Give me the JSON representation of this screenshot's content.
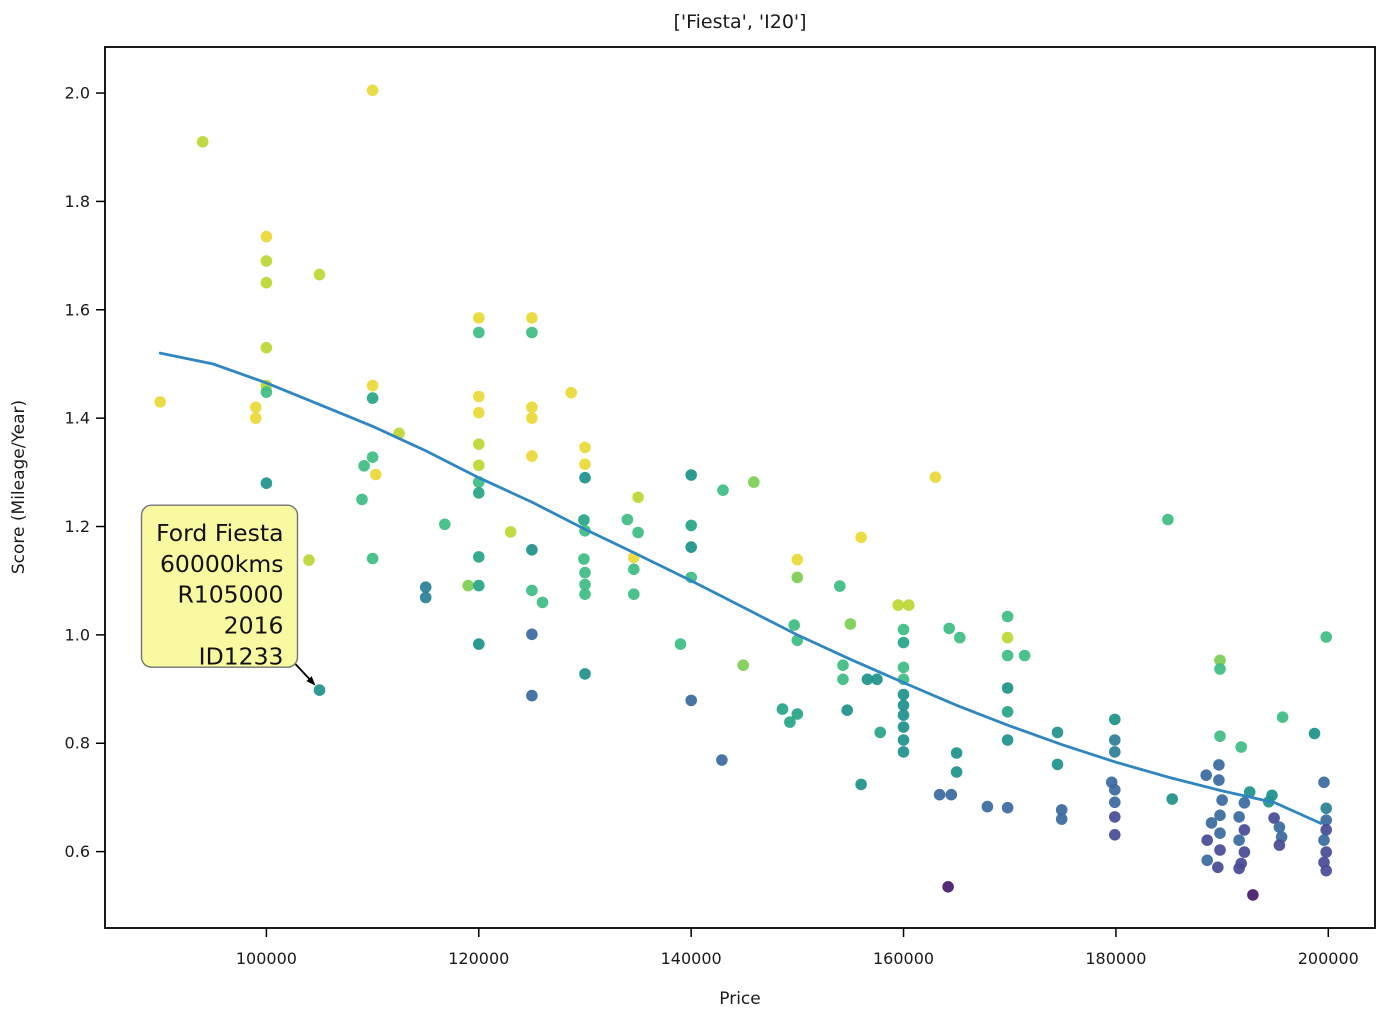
{
  "chart_data": {
    "type": "scatter",
    "title": "['Fiesta', 'I20']",
    "xlabel": "Price",
    "ylabel": "Score (Mileage/Year)",
    "xlim": [
      84800,
      204400
    ],
    "ylim": [
      0.459,
      2.085
    ],
    "x_ticks": [
      100000,
      120000,
      140000,
      160000,
      180000,
      200000
    ],
    "y_ticks": [
      0.6,
      0.8,
      1.0,
      1.2,
      1.4,
      1.6,
      1.8,
      2.0
    ],
    "grid": false,
    "legend": null,
    "colormap": "viridis",
    "palette": {
      "Y": "#e9d938",
      "YG": "#bdd733",
      "LG": "#7ccf52",
      "G": "#3dbc83",
      "TG": "#27a586",
      "T": "#1f928c",
      "TB": "#2b7f97",
      "B": "#3a6b9f",
      "DB": "#474c96",
      "P": "#481a6c"
    },
    "points": [
      [
        110000,
        2.005,
        "Y"
      ],
      [
        94000,
        1.91,
        "YG"
      ],
      [
        100000,
        1.735,
        "Y"
      ],
      [
        100000,
        1.69,
        "YG"
      ],
      [
        100000,
        1.65,
        "YG"
      ],
      [
        105000,
        1.665,
        "YG"
      ],
      [
        100000,
        1.53,
        "YG"
      ],
      [
        90000,
        1.43,
        "Y"
      ],
      [
        100000,
        1.46,
        "YG"
      ],
      [
        100000,
        1.448,
        "G"
      ],
      [
        99000,
        1.42,
        "Y"
      ],
      [
        99000,
        1.4,
        "Y"
      ],
      [
        110000,
        1.46,
        "Y"
      ],
      [
        110000,
        1.437,
        "TG"
      ],
      [
        112500,
        1.372,
        "YG"
      ],
      [
        120000,
        1.585,
        "Y"
      ],
      [
        120000,
        1.558,
        "G"
      ],
      [
        125000,
        1.585,
        "Y"
      ],
      [
        125000,
        1.558,
        "G"
      ],
      [
        120000,
        1.44,
        "Y"
      ],
      [
        120000,
        1.41,
        "Y"
      ],
      [
        125000,
        1.42,
        "Y"
      ],
      [
        125000,
        1.4,
        "Y"
      ],
      [
        128700,
        1.447,
        "Y"
      ],
      [
        120000,
        1.352,
        "YG"
      ],
      [
        120000,
        1.313,
        "YG"
      ],
      [
        125000,
        1.33,
        "Y"
      ],
      [
        130000,
        1.346,
        "Y"
      ],
      [
        130000,
        1.315,
        "Y"
      ],
      [
        130000,
        1.29,
        "T"
      ],
      [
        110000,
        1.328,
        "G"
      ],
      [
        109200,
        1.312,
        "G"
      ],
      [
        110300,
        1.296,
        "Y"
      ],
      [
        120000,
        1.282,
        "G"
      ],
      [
        120000,
        1.262,
        "TG"
      ],
      [
        100000,
        1.28,
        "T"
      ],
      [
        109000,
        1.25,
        "G"
      ],
      [
        135000,
        1.254,
        "YG"
      ],
      [
        140000,
        1.295,
        "T"
      ],
      [
        143000,
        1.267,
        "G"
      ],
      [
        145900,
        1.282,
        "LG"
      ],
      [
        163000,
        1.291,
        "Y"
      ],
      [
        116800,
        1.204,
        "G"
      ],
      [
        123000,
        1.19,
        "YG"
      ],
      [
        129900,
        1.212,
        "TG"
      ],
      [
        130000,
        1.192,
        "G"
      ],
      [
        134000,
        1.213,
        "G"
      ],
      [
        135000,
        1.189,
        "G"
      ],
      [
        129900,
        1.14,
        "G"
      ],
      [
        130000,
        1.115,
        "G"
      ],
      [
        130000,
        1.093,
        "G"
      ],
      [
        130000,
        1.075,
        "G"
      ],
      [
        134600,
        1.143,
        "Y"
      ],
      [
        134600,
        1.121,
        "G"
      ],
      [
        134600,
        1.075,
        "G"
      ],
      [
        104000,
        1.138,
        "YG"
      ],
      [
        100000,
        1.128,
        "Y"
      ],
      [
        110000,
        1.141,
        "G"
      ],
      [
        120000,
        1.144,
        "TG"
      ],
      [
        115000,
        1.088,
        "TB"
      ],
      [
        115000,
        1.069,
        "TB"
      ],
      [
        119000,
        1.091,
        "LG"
      ],
      [
        120000,
        1.091,
        "TG"
      ],
      [
        125000,
        1.157,
        "T"
      ],
      [
        125000,
        1.082,
        "G"
      ],
      [
        126000,
        1.06,
        "G"
      ],
      [
        125000,
        1.001,
        "B"
      ],
      [
        125000,
        0.888,
        "B"
      ],
      [
        130000,
        0.928,
        "T"
      ],
      [
        105000,
        0.898,
        "T"
      ],
      [
        140000,
        1.202,
        "TG"
      ],
      [
        140000,
        1.162,
        "T"
      ],
      [
        140000,
        1.106,
        "G"
      ],
      [
        139000,
        0.983,
        "G"
      ],
      [
        120000,
        0.983,
        "T"
      ],
      [
        144900,
        0.944,
        "LG"
      ],
      [
        140000,
        0.879,
        "B"
      ],
      [
        142900,
        0.769,
        "B"
      ],
      [
        150000,
        1.139,
        "Y"
      ],
      [
        150000,
        1.106,
        "LG"
      ],
      [
        149700,
        1.018,
        "G"
      ],
      [
        150000,
        0.99,
        "G"
      ],
      [
        148600,
        0.863,
        "TG"
      ],
      [
        150000,
        0.854,
        "TG"
      ],
      [
        149300,
        0.839,
        "TG"
      ],
      [
        156000,
        1.18,
        "Y"
      ],
      [
        154000,
        1.09,
        "G"
      ],
      [
        159500,
        1.055,
        "YG"
      ],
      [
        160500,
        1.055,
        "YG"
      ],
      [
        155000,
        1.02,
        "LG"
      ],
      [
        154300,
        0.944,
        "G"
      ],
      [
        154300,
        0.918,
        "G"
      ],
      [
        156600,
        0.918,
        "T"
      ],
      [
        157500,
        0.918,
        "T"
      ],
      [
        160000,
        1.01,
        "G"
      ],
      [
        160000,
        0.986,
        "TG"
      ],
      [
        160000,
        0.94,
        "G"
      ],
      [
        160000,
        0.918,
        "G"
      ],
      [
        160000,
        0.89,
        "T"
      ],
      [
        160000,
        0.87,
        "T"
      ],
      [
        160000,
        0.852,
        "T"
      ],
      [
        160000,
        0.83,
        "T"
      ],
      [
        160000,
        0.806,
        "T"
      ],
      [
        160000,
        0.784,
        "T"
      ],
      [
        154700,
        0.861,
        "T"
      ],
      [
        157800,
        0.82,
        "TG"
      ],
      [
        156000,
        0.724,
        "T"
      ],
      [
        164200,
        0.535,
        "P"
      ],
      [
        184900,
        1.213,
        "G"
      ],
      [
        164300,
        1.012,
        "G"
      ],
      [
        165300,
        0.995,
        "G"
      ],
      [
        169800,
        1.034,
        "G"
      ],
      [
        169800,
        0.995,
        "YG"
      ],
      [
        169800,
        0.962,
        "G"
      ],
      [
        171400,
        0.962,
        "G"
      ],
      [
        169800,
        0.902,
        "T"
      ],
      [
        169800,
        0.858,
        "TG"
      ],
      [
        169800,
        0.806,
        "T"
      ],
      [
        165000,
        0.782,
        "T"
      ],
      [
        165000,
        0.747,
        "T"
      ],
      [
        163400,
        0.705,
        "B"
      ],
      [
        164500,
        0.705,
        "B"
      ],
      [
        167900,
        0.683,
        "B"
      ],
      [
        169800,
        0.681,
        "B"
      ],
      [
        174500,
        0.82,
        "T"
      ],
      [
        174500,
        0.761,
        "T"
      ],
      [
        174900,
        0.677,
        "B"
      ],
      [
        174900,
        0.66,
        "B"
      ],
      [
        179900,
        0.844,
        "T"
      ],
      [
        179900,
        0.806,
        "TB"
      ],
      [
        179900,
        0.784,
        "TB"
      ],
      [
        179600,
        0.728,
        "B"
      ],
      [
        179900,
        0.714,
        "B"
      ],
      [
        179900,
        0.691,
        "B"
      ],
      [
        179900,
        0.664,
        "DB"
      ],
      [
        179900,
        0.631,
        "DB"
      ],
      [
        185300,
        0.697,
        "T"
      ],
      [
        189800,
        0.953,
        "LG"
      ],
      [
        189800,
        0.937,
        "G"
      ],
      [
        195700,
        0.848,
        "G"
      ],
      [
        199800,
        0.996,
        "G"
      ],
      [
        198700,
        0.818,
        "T"
      ],
      [
        189800,
        0.813,
        "G"
      ],
      [
        191800,
        0.793,
        "G"
      ],
      [
        189700,
        0.76,
        "B"
      ],
      [
        188500,
        0.741,
        "B"
      ],
      [
        189700,
        0.732,
        "B"
      ],
      [
        190000,
        0.695,
        "B"
      ],
      [
        189800,
        0.667,
        "B"
      ],
      [
        189000,
        0.653,
        "B"
      ],
      [
        189800,
        0.634,
        "B"
      ],
      [
        188600,
        0.621,
        "DB"
      ],
      [
        189800,
        0.603,
        "DB"
      ],
      [
        188600,
        0.584,
        "B"
      ],
      [
        189600,
        0.571,
        "DB"
      ],
      [
        192600,
        0.71,
        "T"
      ],
      [
        192100,
        0.69,
        "B"
      ],
      [
        191600,
        0.664,
        "B"
      ],
      [
        192100,
        0.64,
        "DB"
      ],
      [
        191600,
        0.621,
        "B"
      ],
      [
        192100,
        0.599,
        "DB"
      ],
      [
        191800,
        0.578,
        "DB"
      ],
      [
        191600,
        0.569,
        "DB"
      ],
      [
        192900,
        0.52,
        "P"
      ],
      [
        194700,
        0.704,
        "T"
      ],
      [
        194400,
        0.692,
        "T"
      ],
      [
        194900,
        0.662,
        "DB"
      ],
      [
        195400,
        0.645,
        "B"
      ],
      [
        195600,
        0.627,
        "B"
      ],
      [
        195400,
        0.612,
        "DB"
      ],
      [
        199600,
        0.728,
        "B"
      ],
      [
        199800,
        0.68,
        "TB"
      ],
      [
        199800,
        0.658,
        "B"
      ],
      [
        199800,
        0.64,
        "DB"
      ],
      [
        199600,
        0.621,
        "B"
      ],
      [
        199800,
        0.599,
        "DB"
      ],
      [
        199600,
        0.58,
        "DB"
      ],
      [
        199800,
        0.565,
        "DB"
      ]
    ],
    "trend_line": {
      "color": "#2f86c1",
      "points": [
        [
          90000,
          1.52
        ],
        [
          95000,
          1.5
        ],
        [
          100000,
          1.465
        ],
        [
          105000,
          1.425
        ],
        [
          110000,
          1.385
        ],
        [
          115000,
          1.34
        ],
        [
          120000,
          1.29
        ],
        [
          125000,
          1.245
        ],
        [
          130000,
          1.195
        ],
        [
          135000,
          1.148
        ],
        [
          140000,
          1.1
        ],
        [
          145000,
          1.05
        ],
        [
          150000,
          1.0
        ],
        [
          155000,
          0.955
        ],
        [
          160000,
          0.912
        ],
        [
          165000,
          0.87
        ],
        [
          170000,
          0.832
        ],
        [
          175000,
          0.797
        ],
        [
          180000,
          0.765
        ],
        [
          185000,
          0.737
        ],
        [
          190000,
          0.712
        ],
        [
          195000,
          0.69
        ],
        [
          199300,
          0.652
        ]
      ]
    },
    "annotation": {
      "lines": [
        "Ford Fiesta",
        "60000kms",
        "R105000",
        "2016",
        "ID1233"
      ],
      "target": {
        "price": 105000,
        "score": 0.898
      },
      "box_fill": "#f9f9a2",
      "box_border": "#737373",
      "arrow_color": "#000000"
    }
  }
}
